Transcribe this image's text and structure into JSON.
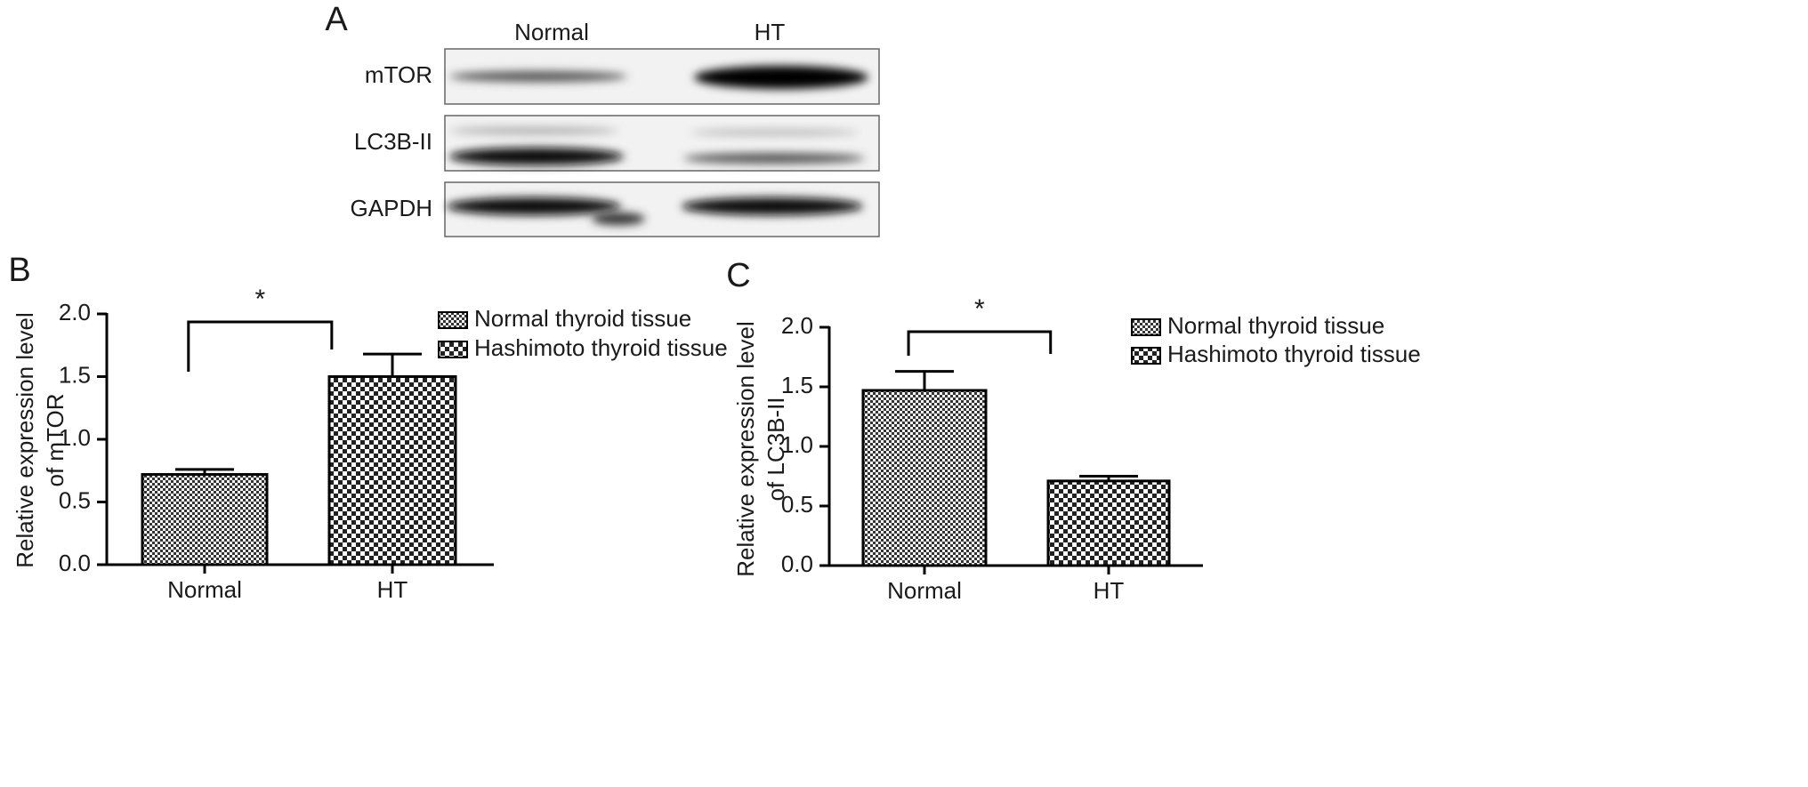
{
  "panel_labels": [
    "A",
    "B",
    "C"
  ],
  "blot": {
    "lanes": [
      "Normal",
      "HT"
    ],
    "bands": [
      "mTOR",
      "LC3B-II",
      "GAPDH"
    ]
  },
  "chart_data": [
    {
      "type": "bar",
      "ylabel": [
        "Relative expression level",
        "of mTOR"
      ],
      "categories": [
        "Normal",
        "HT"
      ],
      "values": [
        0.72,
        1.5
      ],
      "errors": [
        0.04,
        0.18
      ],
      "legend": [
        "Normal thyroid tissue",
        "Hashimoto thyroid tissue"
      ],
      "annotation": "*",
      "color": "#000000",
      "ylim": [
        0,
        2
      ],
      "yticks": [
        {
          "value": 0,
          "label": "0.0"
        },
        {
          "value": 0.5,
          "label": "0.5"
        },
        {
          "value": 1,
          "label": "1.0"
        },
        {
          "value": 1.5,
          "label": "1.5"
        },
        {
          "value": 2,
          "label": "2.0"
        }
      ]
    },
    {
      "type": "bar",
      "ylabel": [
        "Relative expression level",
        "of LC3B-II"
      ],
      "categories": [
        "Normal",
        "HT"
      ],
      "values": [
        1.47,
        0.71
      ],
      "errors": [
        0.16,
        0.04
      ],
      "legend": [
        "Normal thyroid tissue",
        "Hashimoto thyroid tissue"
      ],
      "annotation": "*",
      "color": "#000000",
      "ylim": [
        0,
        2
      ],
      "yticks": [
        {
          "value": 0,
          "label": "0.0"
        },
        {
          "value": 0.5,
          "label": "0.5"
        },
        {
          "value": 1,
          "label": "1.0"
        },
        {
          "value": 1.5,
          "label": "1.5"
        },
        {
          "value": 2,
          "label": "2.0"
        }
      ]
    }
  ]
}
